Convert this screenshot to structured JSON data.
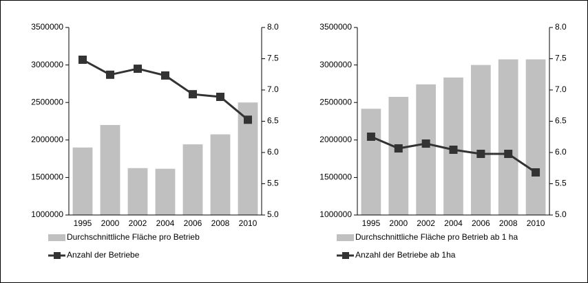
{
  "chart_data": [
    {
      "type": "combo",
      "categories": [
        "1995",
        "2000",
        "2002",
        "2004",
        "2006",
        "2008",
        "2010"
      ],
      "ylim": [
        1000000,
        3500000
      ],
      "yticks": [
        1000000,
        1500000,
        2000000,
        2500000,
        3000000,
        3500000
      ],
      "y2lim": [
        5,
        8
      ],
      "y2ticks": [
        {
          "value": 5,
          "label": "5.0"
        },
        {
          "value": 5.5,
          "label": "5.5"
        },
        {
          "value": 6,
          "label": "6.0"
        },
        {
          "value": 6.5,
          "label": "6.5"
        },
        {
          "value": 7,
          "label": "7.0"
        },
        {
          "value": 7.5,
          "label": "7.5"
        },
        {
          "value": 8,
          "label": "8.0"
        }
      ],
      "series": [
        {
          "name": "Durchschnittliche Fläche pro Betrieb",
          "type": "bar",
          "axis": "y2",
          "color": "#c0c0c0",
          "values": [
            6.08,
            6.44,
            5.75,
            5.74,
            6.13,
            6.29,
            6.8
          ]
        },
        {
          "name": "Anzahl der Betriebe",
          "type": "line",
          "color": "#333333",
          "values": [
            3070000,
            2870000,
            2950000,
            2860000,
            2610000,
            2575000,
            2270000
          ]
        }
      ]
    },
    {
      "type": "combo",
      "categories": [
        "1995",
        "2000",
        "2002",
        "2004",
        "2006",
        "2008",
        "2010"
      ],
      "ylim": [
        1000000,
        3500000
      ],
      "yticks": [
        1000000,
        1500000,
        2000000,
        2500000,
        3000000,
        3500000
      ],
      "y2lim": [
        5,
        8
      ],
      "y2ticks": [
        {
          "value": 5,
          "label": "5.0"
        },
        {
          "value": 5.5,
          "label": "5.5"
        },
        {
          "value": 6,
          "label": "6.0"
        },
        {
          "value": 6.5,
          "label": "6.5"
        },
        {
          "value": 7,
          "label": "7.0"
        },
        {
          "value": 7.5,
          "label": "7.5"
        },
        {
          "value": 8,
          "label": "8.0"
        }
      ],
      "series": [
        {
          "name": "Durchschnittliche Fläche pro Betrieb ab 1 ha",
          "type": "bar",
          "axis": "y2",
          "color": "#c0c0c0",
          "values": [
            6.7,
            6.89,
            7.09,
            7.2,
            7.4,
            7.49,
            7.49
          ]
        },
        {
          "name": "Anzahl der Betriebe ab 1ha",
          "type": "line",
          "color": "#333333",
          "values": [
            2044000,
            1888000,
            1952000,
            1870000,
            1815000,
            1815000,
            1568000
          ]
        }
      ]
    }
  ]
}
